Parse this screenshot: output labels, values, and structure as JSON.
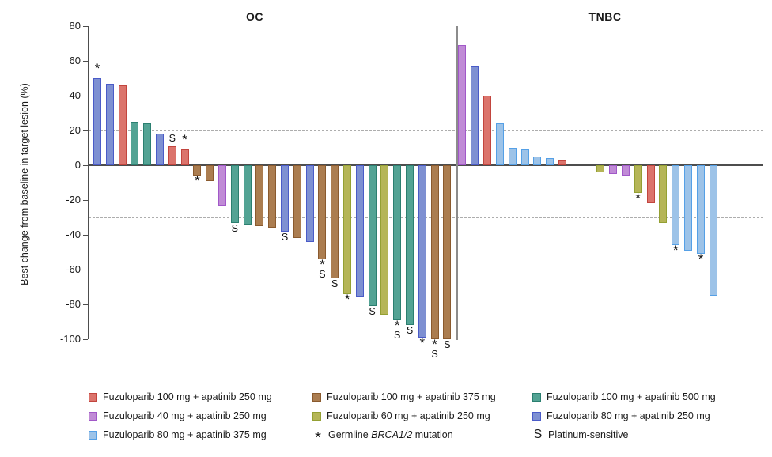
{
  "chart_data": {
    "type": "bar",
    "subtype": "waterfall",
    "title": "",
    "ylabel": "Best change from baseline in target lesion (%)",
    "ylim": [
      -100,
      80
    ],
    "yticks": [
      80,
      60,
      40,
      20,
      0,
      -20,
      -40,
      -60,
      -80,
      -100
    ],
    "reference_lines": [
      20,
      -30
    ],
    "grid": false,
    "legend_position": "bottom",
    "groups": {
      "red": {
        "label": "Fuzuloparib 100 mg + apatinib 250 mg",
        "fill": "#DB746C",
        "border": "#C2453E"
      },
      "brown": {
        "label": "Fuzuloparib 100 mg + apatinib 375 mg",
        "fill": "#AB7D50",
        "border": "#8A5A2E"
      },
      "teal": {
        "label": "Fuzuloparib 100 mg + apatinib 500 mg",
        "fill": "#53A394",
        "border": "#2B7F70"
      },
      "purple": {
        "label": "Fuzuloparib 40 mg + apatinib 250 mg",
        "fill": "#C08BD6",
        "border": "#A158C8"
      },
      "olive": {
        "label": "Fuzuloparib 60 mg + apatinib 250 mg",
        "fill": "#B5B557",
        "border": "#94A033"
      },
      "blue": {
        "label": "Fuzuloparib 80 mg + apatinib 250 mg",
        "fill": "#7E90D2",
        "border": "#4A5BC8"
      },
      "lightblue": {
        "label": "Fuzuloparib 80 mg + apatinib 375 mg",
        "fill": "#9DC3E8",
        "border": "#55A0E6"
      }
    },
    "symbols": {
      "asterisk": {
        "glyph": "*",
        "meaning": "Germline BRCA1/2 mutation"
      },
      "s": {
        "glyph": "S",
        "meaning": "Platinum-sensitive"
      }
    },
    "panels": [
      {
        "title": "OC",
        "bars": [
          {
            "slot": 0,
            "value": 50,
            "group": "blue",
            "marks": [
              "*"
            ]
          },
          {
            "slot": 1,
            "value": 47,
            "group": "blue",
            "marks": []
          },
          {
            "slot": 2,
            "value": 46,
            "group": "red",
            "marks": []
          },
          {
            "slot": 3,
            "value": 25,
            "group": "teal",
            "marks": []
          },
          {
            "slot": 4,
            "value": 24,
            "group": "teal",
            "marks": []
          },
          {
            "slot": 5,
            "value": 18,
            "group": "blue",
            "marks": []
          },
          {
            "slot": 6,
            "value": 11,
            "group": "red",
            "marks": [
              "S"
            ]
          },
          {
            "slot": 7,
            "value": 9,
            "group": "red",
            "marks": [
              "*"
            ]
          },
          {
            "slot": 8,
            "value": -6,
            "group": "brown",
            "marks": [
              "*"
            ]
          },
          {
            "slot": 9,
            "value": -9,
            "group": "brown",
            "marks": []
          },
          {
            "slot": 10,
            "value": -23,
            "group": "purple",
            "marks": []
          },
          {
            "slot": 11,
            "value": -33,
            "group": "teal",
            "marks": [
              "S"
            ]
          },
          {
            "slot": 12,
            "value": -34,
            "group": "teal",
            "marks": []
          },
          {
            "slot": 13,
            "value": -35,
            "group": "brown",
            "marks": []
          },
          {
            "slot": 14,
            "value": -36,
            "group": "brown",
            "marks": []
          },
          {
            "slot": 15,
            "value": -38,
            "group": "blue",
            "marks": [
              "S"
            ]
          },
          {
            "slot": 16,
            "value": -42,
            "group": "brown",
            "marks": []
          },
          {
            "slot": 17,
            "value": -44,
            "group": "blue",
            "marks": []
          },
          {
            "slot": 18,
            "value": -54,
            "group": "brown",
            "marks": [
              "*",
              "S"
            ]
          },
          {
            "slot": 19,
            "value": -65,
            "group": "brown",
            "marks": [
              "S"
            ]
          },
          {
            "slot": 20,
            "value": -74,
            "group": "olive",
            "marks": [
              "*"
            ]
          },
          {
            "slot": 21,
            "value": -76,
            "group": "blue",
            "marks": []
          },
          {
            "slot": 22,
            "value": -81,
            "group": "teal",
            "marks": [
              "S"
            ]
          },
          {
            "slot": 23,
            "value": -86,
            "group": "olive",
            "marks": []
          },
          {
            "slot": 24,
            "value": -89,
            "group": "teal",
            "marks": [
              "*",
              "S"
            ]
          },
          {
            "slot": 25,
            "value": -92,
            "group": "teal",
            "marks": [
              "S"
            ]
          },
          {
            "slot": 26,
            "value": -99,
            "group": "blue",
            "marks": [
              "*"
            ]
          },
          {
            "slot": 27,
            "value": -100,
            "group": "brown",
            "marks": [
              "*",
              "S"
            ]
          },
          {
            "slot": 28,
            "value": -100,
            "group": "brown",
            "marks": [
              "S"
            ]
          }
        ]
      },
      {
        "title": "TNBC",
        "bars": [
          {
            "slot": 0,
            "value": 69,
            "group": "purple",
            "marks": []
          },
          {
            "slot": 1,
            "value": 57,
            "group": "blue",
            "marks": []
          },
          {
            "slot": 2,
            "value": 40,
            "group": "red",
            "marks": []
          },
          {
            "slot": 3,
            "value": 24,
            "group": "lightblue",
            "marks": []
          },
          {
            "slot": 4,
            "value": 10,
            "group": "lightblue",
            "marks": []
          },
          {
            "slot": 5,
            "value": 9,
            "group": "lightblue",
            "marks": []
          },
          {
            "slot": 6,
            "value": 5,
            "group": "lightblue",
            "marks": []
          },
          {
            "slot": 7,
            "value": 4,
            "group": "lightblue",
            "marks": []
          },
          {
            "slot": 8,
            "value": 3,
            "group": "red",
            "marks": []
          },
          {
            "slot": 11,
            "value": -4,
            "group": "olive",
            "marks": []
          },
          {
            "slot": 12,
            "value": -5,
            "group": "purple",
            "marks": []
          },
          {
            "slot": 13,
            "value": -6,
            "group": "purple",
            "marks": []
          },
          {
            "slot": 14,
            "value": -16,
            "group": "olive",
            "marks": [
              "*"
            ]
          },
          {
            "slot": 15,
            "value": -22,
            "group": "red",
            "marks": []
          },
          {
            "slot": 16,
            "value": -33,
            "group": "olive",
            "marks": []
          },
          {
            "slot": 17,
            "value": -46,
            "group": "lightblue",
            "marks": [
              "*"
            ]
          },
          {
            "slot": 18,
            "value": -49,
            "group": "lightblue",
            "marks": []
          },
          {
            "slot": 19,
            "value": -51,
            "group": "lightblue",
            "marks": [
              "*"
            ]
          },
          {
            "slot": 20,
            "value": -75,
            "group": "lightblue",
            "marks": []
          }
        ]
      }
    ],
    "legend": [
      {
        "kind": "swatch",
        "group": "red",
        "label": "Fuzuloparib 100 mg + apatinib 250 mg"
      },
      {
        "kind": "swatch",
        "group": "brown",
        "label": "Fuzuloparib 100 mg + apatinib 375 mg"
      },
      {
        "kind": "swatch",
        "group": "teal",
        "label": "Fuzuloparib 100 mg + apatinib 500 mg"
      },
      {
        "kind": "swatch",
        "group": "purple",
        "label": "Fuzuloparib 40 mg + apatinib 250 mg"
      },
      {
        "kind": "swatch",
        "group": "olive",
        "label": "Fuzuloparib 60 mg + apatinib 250 mg"
      },
      {
        "kind": "swatch",
        "group": "blue",
        "label": "Fuzuloparib 80 mg + apatinib 250 mg"
      },
      {
        "kind": "swatch",
        "group": "lightblue",
        "label": "Fuzuloparib 80 mg + apatinib 375 mg"
      },
      {
        "kind": "symbol",
        "symbol": "*",
        "label_prefix": "Germline ",
        "label_italic": "BRCA1/2",
        "label_suffix": " mutation"
      },
      {
        "kind": "symbol",
        "symbol": "S",
        "label_prefix": "Platinum-sensitive",
        "label_italic": "",
        "label_suffix": ""
      }
    ]
  }
}
